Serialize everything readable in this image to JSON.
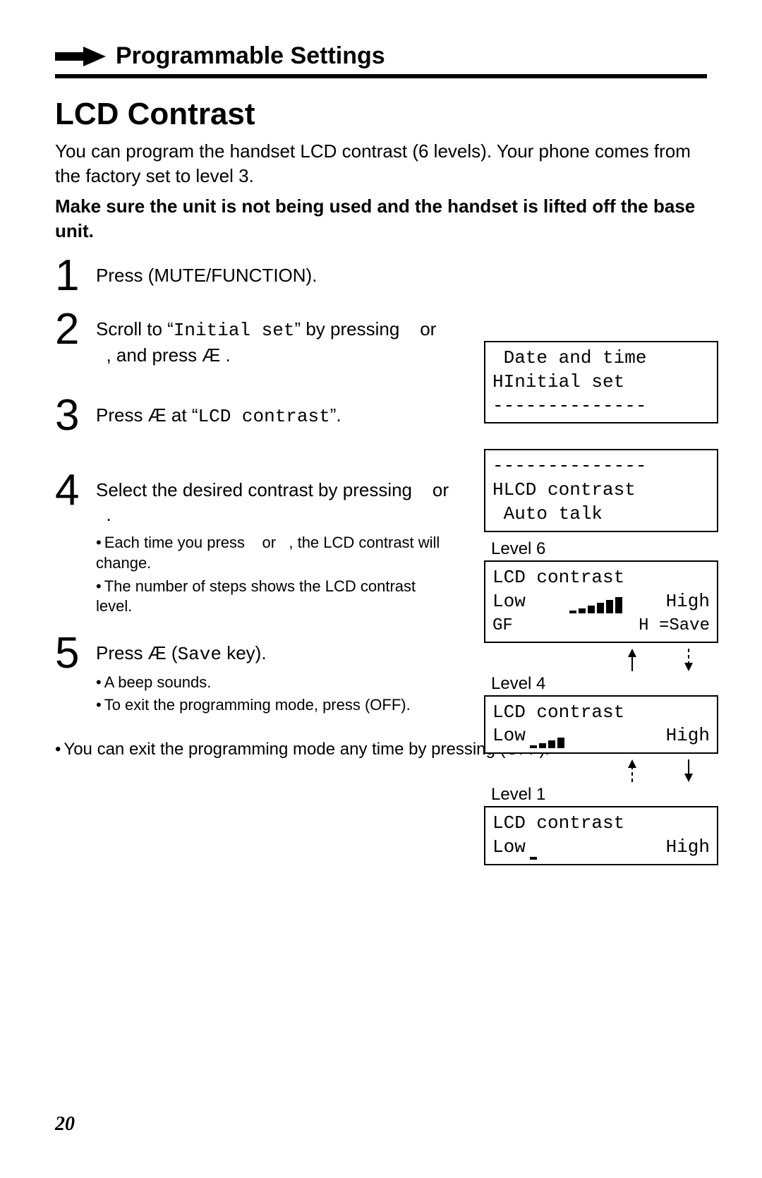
{
  "header": {
    "section_title": "Programmable Settings"
  },
  "title": "LCD Contrast",
  "intro_line1": "You can program the handset LCD contrast (6 levels). Your phone comes from the factory set to level 3.",
  "intro_bold": "Make sure the unit is not being used and the handset is lifted off the base unit.",
  "steps": [
    {
      "num": "1",
      "text_pre": "Press (MUTE/FUNCTION)."
    },
    {
      "num": "2",
      "text_pre": "Scroll to “",
      "mono": "Initial set",
      "text_mid": "” by pressing    or   , and press Æ ."
    },
    {
      "num": "3",
      "text_pre": "Press Æ  at “",
      "mono": "LCD contrast",
      "text_post": "”."
    },
    {
      "num": "4",
      "text_pre": "Select the desired contrast by pressing    or   .",
      "bullets": [
        "Each time you press    or   , the LCD contrast will change.",
        "The number of steps shows the LCD contrast level."
      ]
    },
    {
      "num": "5",
      "text_pre": "Press Æ  (",
      "mono": "Save",
      "text_post": " key).",
      "bullets": [
        "A beep sounds.",
        "To exit the programming mode, press (OFF)."
      ]
    }
  ],
  "footnote": "You can exit the programming mode any time by pressing (OFF).",
  "page_number": "20",
  "lcd": {
    "box1": {
      "line1": " Date and time",
      "line2": "HInitial set",
      "line3": "--------------"
    },
    "box2": {
      "line1": "--------------",
      "line2": "HLCD contrast",
      "line3": " Auto talk"
    },
    "level6_label": "Level 6",
    "level4_label": "Level 4",
    "level1_label": "Level 1",
    "contrast_title": "LCD contrast",
    "low_label": "Low",
    "high_label": "High",
    "gf_left": "GF",
    "gf_right": "H =Save",
    "bars": {
      "level6_heights": [
        4,
        7,
        11,
        15,
        19,
        23
      ],
      "level4_heights": [
        4,
        7,
        11,
        15
      ],
      "level1_heights": [
        4
      ]
    }
  },
  "colors": {
    "text": "#000000",
    "background": "#ffffff",
    "rule": "#000000"
  }
}
